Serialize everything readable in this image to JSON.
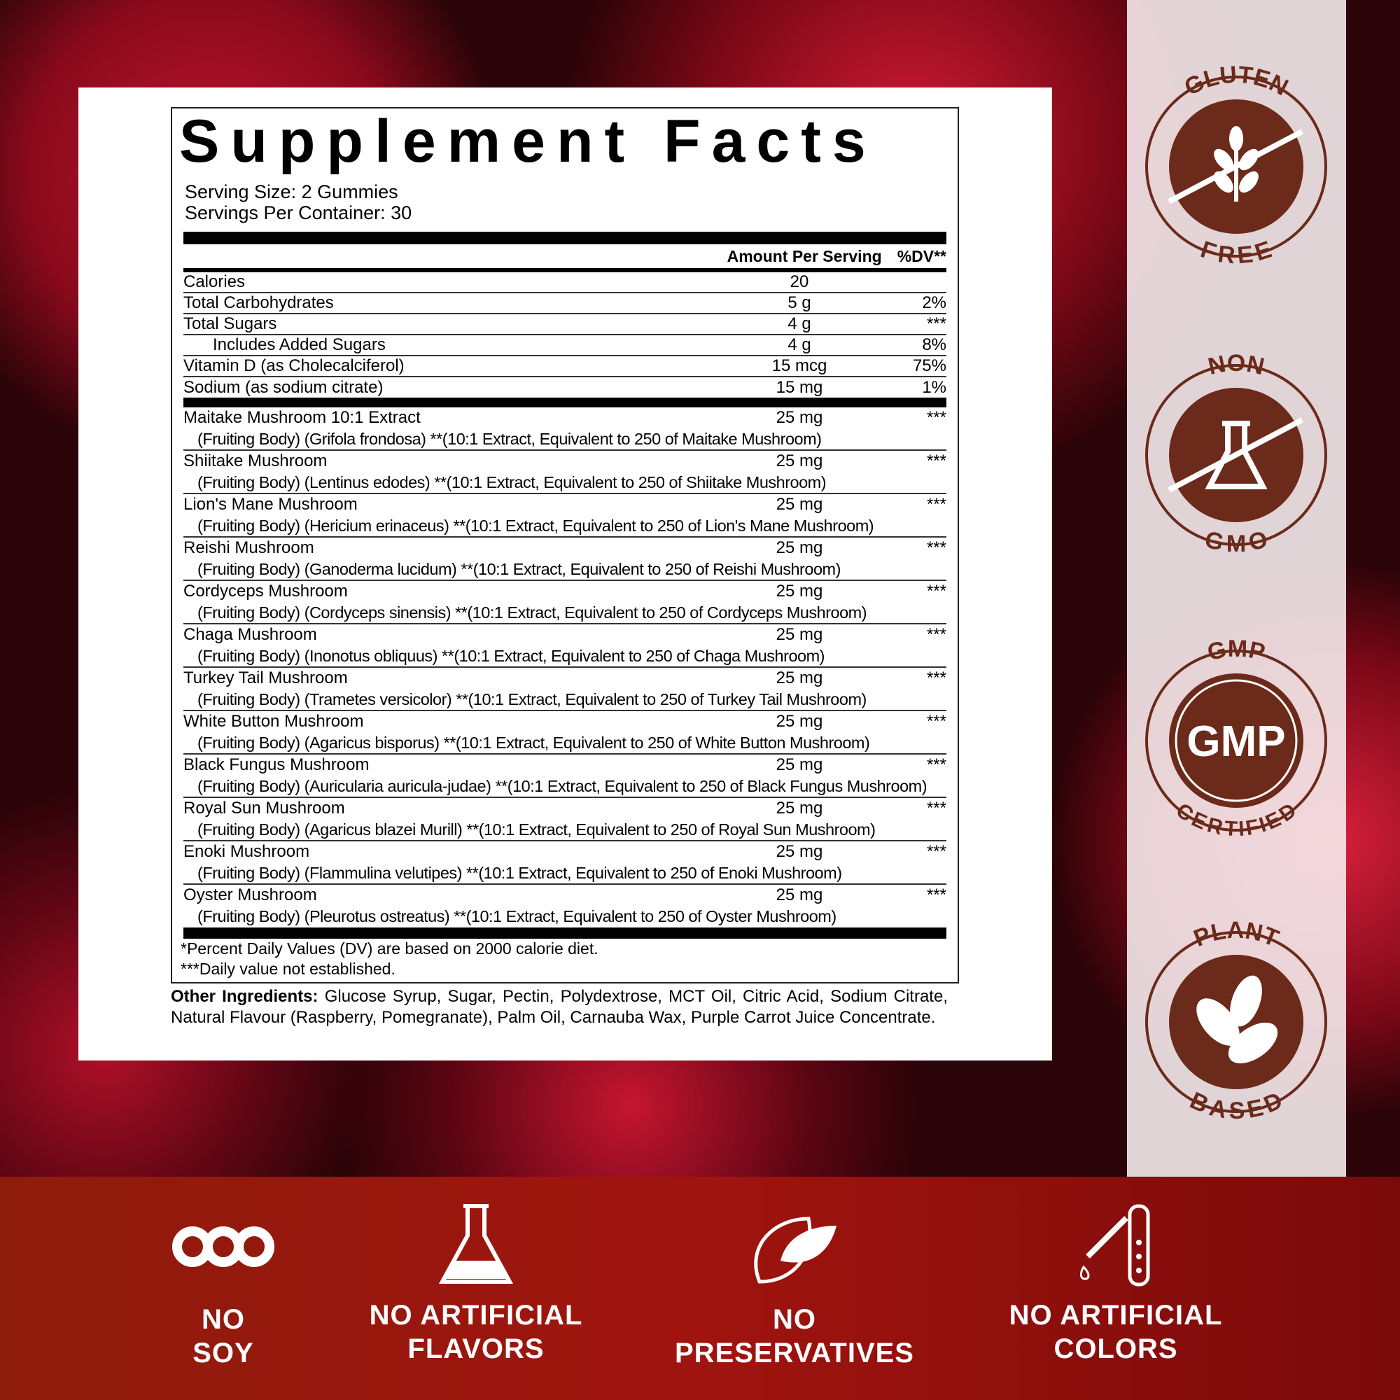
{
  "title": "Supplement Facts",
  "serving_size": "Serving Size: 2 Gummies",
  "servings_per_container": "Servings Per Container: 30",
  "header": {
    "amount": "Amount Per Serving",
    "dv": "%DV**"
  },
  "nutrients": [
    {
      "name": "Calories",
      "amount": "20",
      "dv": ""
    },
    {
      "name": "Total Carbohydrates",
      "amount": "5 g",
      "dv": "2%"
    },
    {
      "name": "Total Sugars",
      "amount": "4 g",
      "dv": "***"
    },
    {
      "name": "Includes Added Sugars",
      "amount": "4 g",
      "dv": "8%"
    },
    {
      "name": "Vitamin D (as Cholecalciferol)",
      "amount": "15 mcg",
      "dv": "75%"
    },
    {
      "name": "Sodium (as sodium citrate)",
      "amount": "15 mg",
      "dv": "1%"
    }
  ],
  "mushrooms": [
    {
      "name": "Maitake Mushroom 10:1 Extract",
      "amount": "25 mg",
      "dv": "***",
      "detail": "(Fruiting Body) (Grifola frondosa) **(10:1 Extract, Equivalent to 250 of Maitake Mushroom)"
    },
    {
      "name": "Shiitake Mushroom",
      "amount": "25 mg",
      "dv": "***",
      "detail": "(Fruiting Body) (Lentinus edodes) **(10:1 Extract, Equivalent to 250 of Shiitake Mushroom)"
    },
    {
      "name": "Lion's Mane Mushroom",
      "amount": "25 mg",
      "dv": "***",
      "detail": "(Fruiting Body) (Hericium erinaceus) **(10:1 Extract, Equivalent to 250 of Lion's Mane Mushroom)"
    },
    {
      "name": "Reishi Mushroom",
      "amount": "25 mg",
      "dv": "***",
      "detail": "(Fruiting Body) (Ganoderma lucidum) **(10:1 Extract, Equivalent to 250 of Reishi Mushroom)"
    },
    {
      "name": "Cordyceps Mushroom",
      "amount": "25 mg",
      "dv": "***",
      "detail": "(Fruiting Body) (Cordyceps sinensis) **(10:1 Extract, Equivalent to 250 of Cordyceps Mushroom)"
    },
    {
      "name": "Chaga Mushroom",
      "amount": "25 mg",
      "dv": "***",
      "detail": "(Fruiting Body) (Inonotus obliquus) **(10:1 Extract, Equivalent to 250 of Chaga Mushroom)"
    },
    {
      "name": "Turkey Tail Mushroom",
      "amount": "25 mg",
      "dv": "***",
      "detail": "(Fruiting Body) (Trametes versicolor) **(10:1 Extract, Equivalent to 250 of Turkey Tail Mushroom)"
    },
    {
      "name": "White Button Mushroom",
      "amount": "25 mg",
      "dv": "***",
      "detail": "(Fruiting Body) (Agaricus bisporus) **(10:1 Extract, Equivalent to 250 of White Button Mushroom)"
    },
    {
      "name": "Black Fungus Mushroom",
      "amount": "25 mg",
      "dv": "***",
      "detail": "(Fruiting Body) (Auricularia auricula-judae) **(10:1 Extract, Equivalent to 250 of Black Fungus Mushroom)"
    },
    {
      "name": "Royal Sun Mushroom",
      "amount": "25 mg",
      "dv": "***",
      "detail": "(Fruiting Body) (Agaricus blazei Murill) **(10:1 Extract, Equivalent to 250 of Royal Sun Mushroom)"
    },
    {
      "name": "Enoki Mushroom",
      "amount": "25 mg",
      "dv": "***",
      "detail": "(Fruiting Body) (Flammulina velutipes) **(10:1 Extract, Equivalent to 250 of Enoki Mushroom)"
    },
    {
      "name": "Oyster Mushroom",
      "amount": "25 mg",
      "dv": "***",
      "detail": "(Fruiting Body) (Pleurotus ostreatus) **(10:1 Extract, Equivalent to 250 of Oyster Mushroom)"
    }
  ],
  "footnotes": [
    "*Percent Daily Values (DV) are based on 2000 calorie diet.",
    "***Daily value not established."
  ],
  "other_ingredients": {
    "label": "Other Ingredients:",
    "text": " Glucose Syrup, Sugar, Pectin, Polydextrose, MCT Oil, Citric Acid, Sodium Citrate, Natural Flavour (Raspberry, Pomegranate), Palm Oil, Carnauba Wax, Purple Carrot Juice Concentrate."
  },
  "badges": [
    {
      "top": "GLUTEN",
      "bottom": "FREE",
      "icon": "wheat-crossed-icon"
    },
    {
      "top": "NON",
      "bottom": "GMO",
      "icon": "flask-crossed-icon"
    },
    {
      "top": "GMP",
      "bottom": "CERTIFIED",
      "icon": "gmp-text",
      "center": "GMP"
    },
    {
      "top": "PLANT",
      "bottom": "BASED",
      "icon": "leaves-icon"
    }
  ],
  "features": [
    {
      "line1": "NO",
      "line2": "SOY",
      "icon": "soy-icon"
    },
    {
      "line1": "NO ARTIFICIAL",
      "line2": "FLAVORS",
      "icon": "flask-icon"
    },
    {
      "line1": "NO",
      "line2": "PRESERVATIVES",
      "icon": "leaf-icon"
    },
    {
      "line1": "NO ARTIFICIAL",
      "line2": "COLORS",
      "icon": "dropper-tube-icon"
    }
  ],
  "colors": {
    "badge_brown": "#6b2a1a",
    "band_red": "#a0140f"
  }
}
